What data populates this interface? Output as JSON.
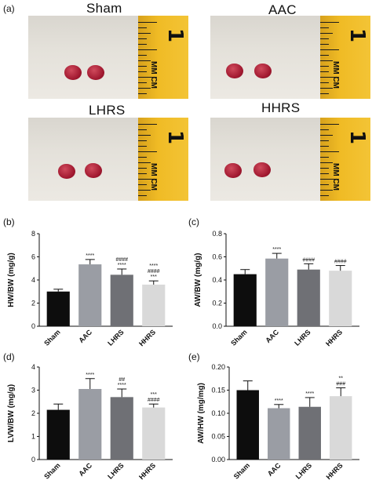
{
  "figure": {
    "labels": {
      "a": "(a)",
      "b": "(b)",
      "c": "(c)",
      "d": "(d)",
      "e": "(e)"
    }
  },
  "photos": [
    {
      "title": "Sham",
      "ruler_number": "1",
      "ruler_unit_1": "MM",
      "ruler_unit_2": "CM"
    },
    {
      "title": "AAC",
      "ruler_number": "1",
      "ruler_unit_1": "MM",
      "ruler_unit_2": "CM"
    },
    {
      "title": "LHRS",
      "ruler_number": "1",
      "ruler_unit_1": "MM",
      "ruler_unit_2": "CM"
    },
    {
      "title": "HHRS",
      "ruler_number": "1",
      "ruler_unit_1": "MM",
      "ruler_unit_2": "CM"
    }
  ],
  "chart_data": [
    {
      "panel": "b",
      "type": "bar",
      "categories": [
        "Sham",
        "AAC",
        "LHRS",
        "HHRS"
      ],
      "values": [
        3.0,
        5.35,
        4.45,
        3.6
      ],
      "errors": [
        0.2,
        0.42,
        0.5,
        0.32
      ],
      "colors": [
        "#0d0d0d",
        "#9a9da4",
        "#6f7075",
        "#d9d9d9"
      ],
      "ylabel": "HW/BW (mg/g)",
      "ylim": [
        0,
        8
      ],
      "yticks": [
        "0",
        "2",
        "4",
        "6",
        "8"
      ],
      "annotations": [
        [],
        [
          "****"
        ],
        [
          "####",
          "****"
        ],
        [
          "****",
          "####",
          "***"
        ]
      ]
    },
    {
      "panel": "c",
      "type": "bar",
      "categories": [
        "Sham",
        "AAC",
        "LHRS",
        "HHRS"
      ],
      "values": [
        0.45,
        0.585,
        0.49,
        0.48
      ],
      "errors": [
        0.04,
        0.045,
        0.05,
        0.045
      ],
      "colors": [
        "#0d0d0d",
        "#9a9da4",
        "#6f7075",
        "#d9d9d9"
      ],
      "ylabel": "AW/BW (mg/g)",
      "ylim": [
        0,
        0.8
      ],
      "yticks": [
        "0.0",
        "0.2",
        "0.4",
        "0.6",
        "0.8"
      ],
      "annotations": [
        [],
        [
          "****"
        ],
        [
          "####"
        ],
        [
          "####"
        ]
      ]
    },
    {
      "panel": "d",
      "type": "bar",
      "categories": [
        "Sham",
        "AAC",
        "LHRS",
        "HHRS"
      ],
      "values": [
        2.15,
        3.05,
        2.7,
        2.25
      ],
      "errors": [
        0.25,
        0.45,
        0.35,
        0.15
      ],
      "colors": [
        "#0d0d0d",
        "#9a9da4",
        "#6f7075",
        "#d9d9d9"
      ],
      "ylabel": "LVW/BW (mg/g)",
      "ylim": [
        0,
        4
      ],
      "yticks": [
        "0",
        "1",
        "2",
        "3",
        "4"
      ],
      "annotations": [
        [],
        [
          "****"
        ],
        [
          "##",
          "****"
        ],
        [
          "***",
          "####"
        ]
      ]
    },
    {
      "panel": "e",
      "type": "bar",
      "categories": [
        "Sham",
        "AAC",
        "LHRS",
        "HHRS"
      ],
      "values": [
        0.15,
        0.111,
        0.114,
        0.137
      ],
      "errors": [
        0.02,
        0.008,
        0.02,
        0.018
      ],
      "colors": [
        "#0d0d0d",
        "#9a9da4",
        "#6f7075",
        "#d9d9d9"
      ],
      "ylabel": "AW/HW (mg/mg)",
      "ylim": [
        0,
        0.2
      ],
      "yticks": [
        "0.00",
        "0.05",
        "0.10",
        "0.15",
        "0.20"
      ],
      "annotations": [
        [],
        [
          "****"
        ],
        [
          "****"
        ],
        [
          "**",
          "###"
        ]
      ]
    }
  ]
}
